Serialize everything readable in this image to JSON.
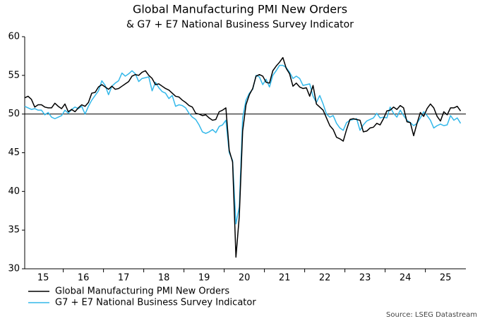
{
  "chart_data": {
    "type": "line",
    "title": "Global Manufacturing PMI New Orders",
    "subtitle": "& G7 + E7 National Business Survey Indicator",
    "source": "Source: LSEG Datastream",
    "categories": [
      null,
      null,
      null,
      null,
      null,
      null,
      "15",
      null,
      null,
      null,
      null,
      null,
      null,
      null,
      null,
      null,
      null,
      null,
      "16",
      null,
      null,
      null,
      null,
      null,
      null,
      null,
      null,
      null,
      null,
      null,
      "17",
      null,
      null,
      null,
      null,
      null,
      null,
      null,
      null,
      null,
      null,
      null,
      "18",
      null,
      null,
      null,
      null,
      null,
      null,
      null,
      null,
      null,
      null,
      null,
      "19",
      null,
      null,
      null,
      null,
      null,
      null,
      null,
      null,
      null,
      null,
      null,
      "20",
      null,
      null,
      null,
      null,
      null,
      null,
      null,
      null,
      null,
      null,
      null,
      "21",
      null,
      null,
      null,
      null,
      null,
      null,
      null,
      null,
      null,
      null,
      null,
      "22",
      null,
      null,
      null,
      null,
      null,
      null,
      null,
      null,
      null,
      null,
      null,
      "23",
      null,
      null,
      null,
      null,
      null,
      null,
      null,
      null,
      null,
      null,
      null,
      "24",
      null,
      null,
      null,
      null,
      null,
      null,
      null,
      null,
      null,
      null,
      null,
      "25",
      null,
      null,
      null,
      null
    ],
    "series": [
      {
        "name": "Global Manufacturing PMI New Orders",
        "color": "#000000",
        "values": [
          52.1,
          52.3,
          51.9,
          50.9,
          51.2,
          51.2,
          50.9,
          50.8,
          50.8,
          51.4,
          51.0,
          50.7,
          51.3,
          50.3,
          50.6,
          50.3,
          50.8,
          51.2,
          51.0,
          51.5,
          52.7,
          52.8,
          53.5,
          53.8,
          53.5,
          53.2,
          53.6,
          53.2,
          53.3,
          53.6,
          53.9,
          54.2,
          54.9,
          55.1,
          55.0,
          55.4,
          55.6,
          55.0,
          54.6,
          53.8,
          53.9,
          53.6,
          53.3,
          53.1,
          52.7,
          52.3,
          52.2,
          51.8,
          51.5,
          51.1,
          50.9,
          50.1,
          50.0,
          49.8,
          49.9,
          49.5,
          49.2,
          49.3,
          50.3,
          50.5,
          50.8,
          45.3,
          43.8,
          31.5,
          36.8,
          47.8,
          51.2,
          52.5,
          53.3,
          54.9,
          55.1,
          54.9,
          54.1,
          54.0,
          55.6,
          56.2,
          56.7,
          57.3,
          55.9,
          55.2,
          53.6,
          54.0,
          53.5,
          53.3,
          53.4,
          52.3,
          53.7,
          51.3,
          50.9,
          50.5,
          49.5,
          48.5,
          48.0,
          47.0,
          46.8,
          46.5,
          48.0,
          49.3,
          49.4,
          49.3,
          49.2,
          47.7,
          47.8,
          48.2,
          48.3,
          48.8,
          48.6,
          49.4,
          50.4,
          50.5,
          50.9,
          50.6,
          51.1,
          50.8,
          49.0,
          48.9,
          47.2,
          48.8,
          50.2,
          49.7,
          50.7,
          51.3,
          50.8,
          49.7,
          49.1,
          50.3,
          49.9,
          50.8,
          50.8,
          51.0,
          50.4
        ]
      },
      {
        "name": "G7 + E7 National Business Survey Indicator",
        "color": "#33b8ea",
        "values": [
          51.0,
          50.8,
          50.6,
          50.7,
          50.5,
          50.5,
          49.9,
          50.2,
          49.6,
          49.4,
          49.6,
          49.8,
          50.5,
          50.1,
          50.6,
          50.9,
          50.7,
          51.0,
          50.0,
          51.0,
          51.8,
          52.4,
          53.0,
          54.3,
          53.7,
          52.5,
          53.6,
          54.0,
          54.3,
          55.3,
          54.9,
          55.2,
          55.6,
          55.2,
          54.2,
          54.6,
          54.7,
          54.8,
          53.0,
          54.1,
          53.4,
          52.9,
          52.7,
          52.0,
          52.4,
          51.0,
          51.2,
          51.1,
          50.8,
          50.1,
          49.6,
          49.3,
          48.6,
          47.7,
          47.5,
          47.7,
          48.0,
          47.6,
          48.4,
          48.6,
          49.2,
          45.0,
          44.0,
          35.8,
          38.0,
          49.5,
          51.8,
          52.7,
          53.2,
          55.0,
          54.8,
          53.8,
          54.5,
          53.5,
          55.0,
          55.6,
          56.3,
          56.3,
          56.0,
          55.4,
          54.6,
          54.9,
          54.6,
          53.7,
          53.8,
          53.9,
          52.3,
          51.5,
          52.4,
          51.3,
          50.0,
          49.6,
          49.8,
          48.8,
          48.2,
          47.9,
          48.9,
          49.2,
          49.3,
          49.4,
          47.9,
          48.6,
          49.1,
          49.3,
          49.5,
          50.1,
          49.5,
          49.6,
          49.5,
          50.9,
          50.1,
          49.6,
          50.5,
          49.8,
          49.2,
          48.9,
          48.5,
          48.8,
          49.5,
          50.3,
          49.8,
          49.2,
          48.2,
          48.5,
          48.7,
          48.5,
          48.6,
          49.8,
          49.2,
          49.5,
          48.8
        ]
      }
    ],
    "reference_line": 50,
    "ylim": [
      30,
      60
    ],
    "yticks": [
      30,
      35,
      40,
      45,
      50,
      55,
      60
    ],
    "legend": "bottom-left",
    "grid": false
  }
}
